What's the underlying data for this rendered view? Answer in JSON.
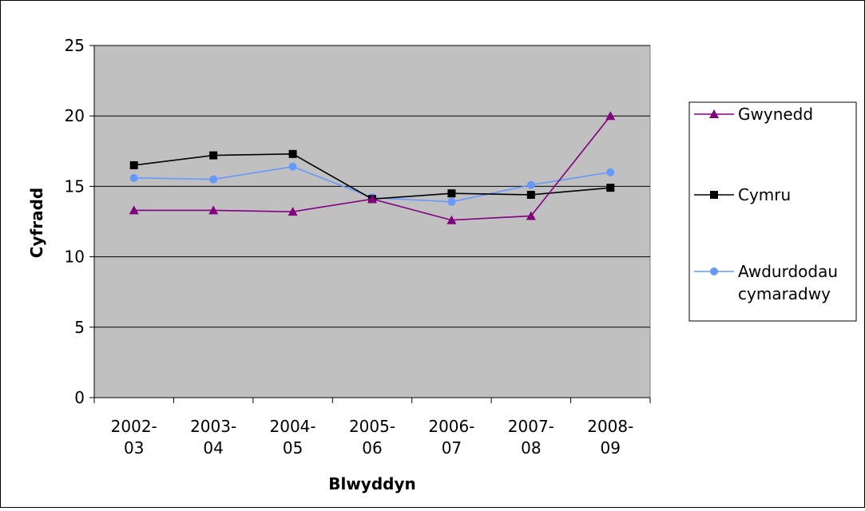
{
  "chart_data": {
    "type": "line",
    "title": "",
    "xlabel": "Blwyddyn",
    "ylabel": "Cyfradd",
    "ylim": [
      0,
      25
    ],
    "yticks": [
      0,
      5,
      10,
      15,
      20,
      25
    ],
    "ytick_labels": [
      "0",
      "5",
      "10",
      "15",
      "20",
      "25"
    ],
    "grid": true,
    "legend_position": "right",
    "plot_background": "#c0c0c0",
    "categories": [
      [
        "2002-",
        "03"
      ],
      [
        "2003-",
        "04"
      ],
      [
        "2004-",
        "05"
      ],
      [
        "2005-",
        "06"
      ],
      [
        "2006-",
        "07"
      ],
      [
        "2007-",
        "08"
      ],
      [
        "2008-",
        "09"
      ]
    ],
    "series": [
      {
        "name": "Gwynedd",
        "marker": "triangle",
        "color": "#800080",
        "values": [
          13.3,
          13.3,
          13.2,
          14.1,
          12.6,
          12.9,
          20.0
        ]
      },
      {
        "name": "Cymru",
        "marker": "square",
        "color": "#000000",
        "values": [
          16.5,
          17.2,
          17.3,
          14.1,
          14.5,
          14.4,
          14.9
        ]
      },
      {
        "name": "Awdurdodau cymaradwy",
        "name_lines": [
          "Awdurdodau",
          "cymaradwy"
        ],
        "marker": "circle",
        "color": "#6699ff",
        "values": [
          15.6,
          15.5,
          16.4,
          14.2,
          13.9,
          15.1,
          16.0
        ]
      }
    ]
  }
}
